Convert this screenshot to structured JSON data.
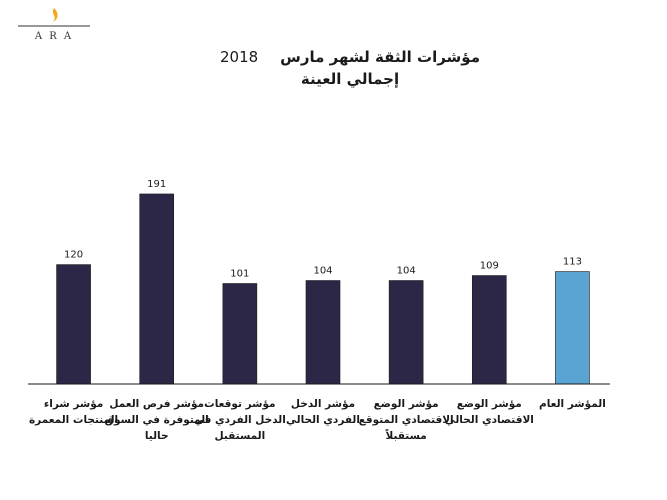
{
  "logo": {
    "text": "A R A"
  },
  "title": {
    "line1": "مؤشرات الثقة لشهر مارس",
    "year": "2018",
    "line2": "إجمالي العينة"
  },
  "colors": {
    "bar": "#2c2747",
    "highlight": "#5aa4d4",
    "axis": "#1a1a1a",
    "logo_flame": "#f2a81d"
  },
  "chart_data": {
    "type": "bar",
    "title": "مؤشرات الثقة لشهر مارس 2018 - إجمالي العينة",
    "categories": [
      [
        "مؤشر شراء",
        "المنتجات المعمرة"
      ],
      [
        "مؤشر فرص العمل",
        "المتوفرة في السوق",
        "حاليا"
      ],
      [
        "مؤشر توقعات",
        "الدخل الفردي في",
        "المستقبل"
      ],
      [
        "مؤشر الدخل",
        "الفردي الحالي"
      ],
      [
        "مؤشر الوضع",
        "الاقتصادي المتوقع",
        "مستقبلاً"
      ],
      [
        "مؤشر الوضع",
        "الاقتصادي الحالي"
      ],
      [
        "المؤشر العام"
      ]
    ],
    "values": [
      120,
      191,
      101,
      104,
      104,
      109,
      113
    ],
    "highlight_index": 6,
    "ylim": [
      0,
      200
    ],
    "grid": false,
    "legend": "none"
  }
}
